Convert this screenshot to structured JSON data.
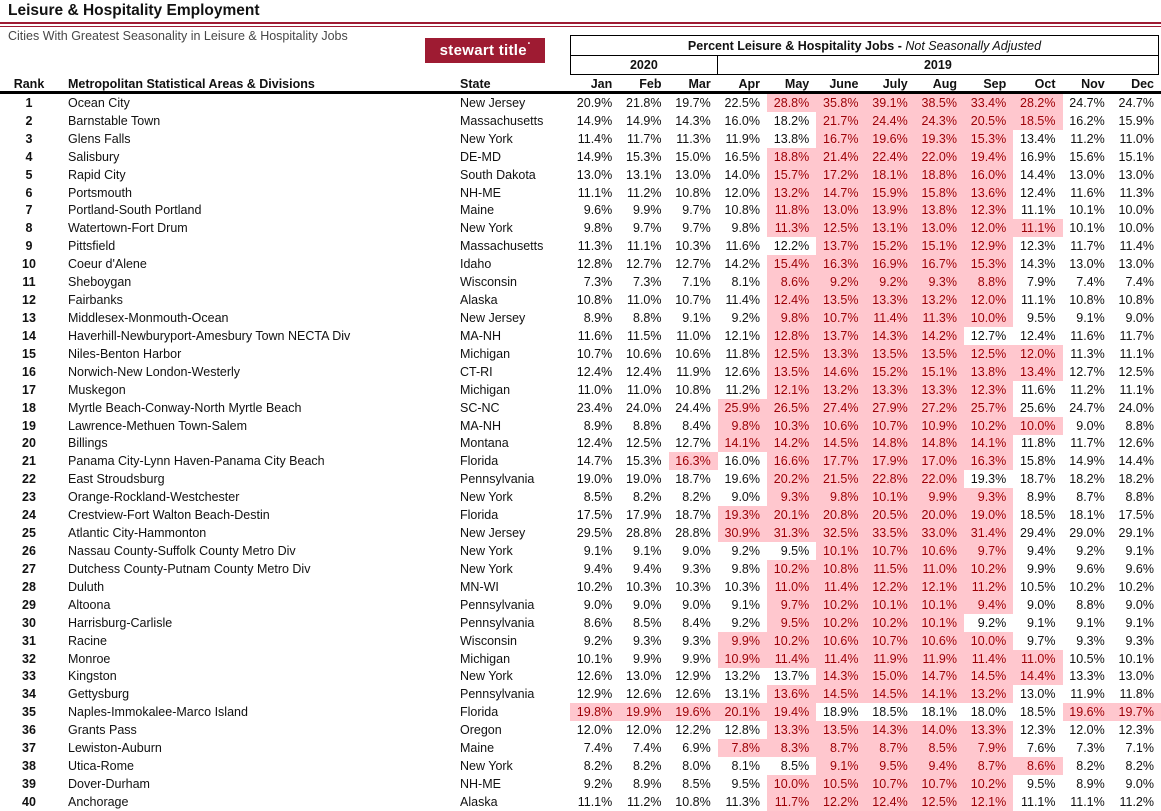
{
  "page": {
    "title": "Leisure & Hospitality Employment",
    "subtitle": "Cities With Greatest Seasonality in Leisure & Hospitality Jobs"
  },
  "logo": {
    "text": "stewart title",
    "mark": "•"
  },
  "colors": {
    "accent": "#9E1B32",
    "highlight_bg": "#FFC7CE",
    "highlight_text": "#9C0006"
  },
  "table": {
    "group_header_bold": "Percent Leisure & Hospitality Jobs - ",
    "group_header_italic": "Not Seasonally Adjusted",
    "year_2020": "2020",
    "year_2019": "2019",
    "columns": {
      "rank": "Rank",
      "msa": "Metropolitan Statistical Areas & Divisions",
      "state": "State",
      "months": [
        "Jan",
        "Feb",
        "Mar",
        "Apr",
        "May",
        "June",
        "July",
        "Aug",
        "Sep",
        "Oct",
        "Nov",
        "Dec"
      ]
    },
    "rows": [
      {
        "rank": "1",
        "msa": "Ocean City",
        "state": "New Jersey",
        "values": [
          "20.9%",
          "21.8%",
          "19.7%",
          "22.5%",
          "28.8%",
          "35.8%",
          "39.1%",
          "38.5%",
          "33.4%",
          "28.2%",
          "24.7%",
          "24.7%"
        ],
        "hl": [
          4,
          5,
          6,
          7,
          8,
          9
        ]
      },
      {
        "rank": "2",
        "msa": "Barnstable Town",
        "state": "Massachusetts",
        "values": [
          "14.9%",
          "14.9%",
          "14.3%",
          "16.0%",
          "18.2%",
          "21.7%",
          "24.4%",
          "24.3%",
          "20.5%",
          "18.5%",
          "16.2%",
          "15.9%"
        ],
        "hl": [
          5,
          6,
          7,
          8,
          9
        ]
      },
      {
        "rank": "3",
        "msa": "Glens Falls",
        "state": "New York",
        "values": [
          "11.4%",
          "11.7%",
          "11.3%",
          "11.9%",
          "13.8%",
          "16.7%",
          "19.6%",
          "19.3%",
          "15.3%",
          "13.4%",
          "11.2%",
          "11.0%"
        ],
        "hl": [
          5,
          6,
          7,
          8
        ]
      },
      {
        "rank": "4",
        "msa": "Salisbury",
        "state": "DE-MD",
        "values": [
          "14.9%",
          "15.3%",
          "15.0%",
          "16.5%",
          "18.8%",
          "21.4%",
          "22.4%",
          "22.0%",
          "19.4%",
          "16.9%",
          "15.6%",
          "15.1%"
        ],
        "hl": [
          4,
          5,
          6,
          7,
          8
        ]
      },
      {
        "rank": "5",
        "msa": "Rapid City",
        "state": "South Dakota",
        "values": [
          "13.0%",
          "13.1%",
          "13.0%",
          "14.0%",
          "15.7%",
          "17.2%",
          "18.1%",
          "18.8%",
          "16.0%",
          "14.4%",
          "13.0%",
          "13.0%"
        ],
        "hl": [
          4,
          5,
          6,
          7,
          8
        ]
      },
      {
        "rank": "6",
        "msa": "Portsmouth",
        "state": "NH-ME",
        "values": [
          "11.1%",
          "11.2%",
          "10.8%",
          "12.0%",
          "13.2%",
          "14.7%",
          "15.9%",
          "15.8%",
          "13.6%",
          "12.4%",
          "11.6%",
          "11.3%"
        ],
        "hl": [
          4,
          5,
          6,
          7,
          8
        ]
      },
      {
        "rank": "7",
        "msa": "Portland-South Portland",
        "state": "Maine",
        "values": [
          "9.6%",
          "9.9%",
          "9.7%",
          "10.8%",
          "11.8%",
          "13.0%",
          "13.9%",
          "13.8%",
          "12.3%",
          "11.1%",
          "10.1%",
          "10.0%"
        ],
        "hl": [
          4,
          5,
          6,
          7,
          8
        ]
      },
      {
        "rank": "8",
        "msa": "Watertown-Fort Drum",
        "state": "New York",
        "values": [
          "9.8%",
          "9.7%",
          "9.7%",
          "9.8%",
          "11.3%",
          "12.5%",
          "13.1%",
          "13.0%",
          "12.0%",
          "11.1%",
          "10.1%",
          "10.0%"
        ],
        "hl": [
          4,
          5,
          6,
          7,
          8,
          9
        ]
      },
      {
        "rank": "9",
        "msa": "Pittsfield",
        "state": "Massachusetts",
        "values": [
          "11.3%",
          "11.1%",
          "10.3%",
          "11.6%",
          "12.2%",
          "13.7%",
          "15.2%",
          "15.1%",
          "12.9%",
          "12.3%",
          "11.7%",
          "11.4%"
        ],
        "hl": [
          5,
          6,
          7,
          8
        ]
      },
      {
        "rank": "10",
        "msa": "Coeur d'Alene",
        "state": "Idaho",
        "values": [
          "12.8%",
          "12.7%",
          "12.7%",
          "14.2%",
          "15.4%",
          "16.3%",
          "16.9%",
          "16.7%",
          "15.3%",
          "14.3%",
          "13.0%",
          "13.0%"
        ],
        "hl": [
          4,
          5,
          6,
          7,
          8
        ]
      },
      {
        "rank": "11",
        "msa": "Sheboygan",
        "state": "Wisconsin",
        "values": [
          "7.3%",
          "7.3%",
          "7.1%",
          "8.1%",
          "8.6%",
          "9.2%",
          "9.2%",
          "9.3%",
          "8.8%",
          "7.9%",
          "7.4%",
          "7.4%"
        ],
        "hl": [
          4,
          5,
          6,
          7,
          8
        ]
      },
      {
        "rank": "12",
        "msa": "Fairbanks",
        "state": "Alaska",
        "values": [
          "10.8%",
          "11.0%",
          "10.7%",
          "11.4%",
          "12.4%",
          "13.5%",
          "13.3%",
          "13.2%",
          "12.0%",
          "11.1%",
          "10.8%",
          "10.8%"
        ],
        "hl": [
          4,
          5,
          6,
          7,
          8
        ]
      },
      {
        "rank": "13",
        "msa": "Middlesex-Monmouth-Ocean",
        "state": "New Jersey",
        "values": [
          "8.9%",
          "8.8%",
          "9.1%",
          "9.2%",
          "9.8%",
          "10.7%",
          "11.4%",
          "11.3%",
          "10.0%",
          "9.5%",
          "9.1%",
          "9.0%"
        ],
        "hl": [
          4,
          5,
          6,
          7,
          8
        ]
      },
      {
        "rank": "14",
        "msa": "Haverhill-Newburyport-Amesbury Town NECTA Div",
        "state": "MA-NH",
        "values": [
          "11.6%",
          "11.5%",
          "11.0%",
          "12.1%",
          "12.8%",
          "13.7%",
          "14.3%",
          "14.2%",
          "12.7%",
          "12.4%",
          "11.6%",
          "11.7%"
        ],
        "hl": [
          4,
          5,
          6,
          7
        ]
      },
      {
        "rank": "15",
        "msa": "Niles-Benton Harbor",
        "state": "Michigan",
        "values": [
          "10.7%",
          "10.6%",
          "10.6%",
          "11.8%",
          "12.5%",
          "13.3%",
          "13.5%",
          "13.5%",
          "12.5%",
          "12.0%",
          "11.3%",
          "11.1%"
        ],
        "hl": [
          4,
          5,
          6,
          7,
          8,
          9
        ]
      },
      {
        "rank": "16",
        "msa": "Norwich-New London-Westerly",
        "state": "CT-RI",
        "values": [
          "12.4%",
          "12.4%",
          "11.9%",
          "12.6%",
          "13.5%",
          "14.6%",
          "15.2%",
          "15.1%",
          "13.8%",
          "13.4%",
          "12.7%",
          "12.5%"
        ],
        "hl": [
          4,
          5,
          6,
          7,
          8,
          9
        ]
      },
      {
        "rank": "17",
        "msa": "Muskegon",
        "state": "Michigan",
        "values": [
          "11.0%",
          "11.0%",
          "10.8%",
          "11.2%",
          "12.1%",
          "13.2%",
          "13.3%",
          "13.3%",
          "12.3%",
          "11.6%",
          "11.2%",
          "11.1%"
        ],
        "hl": [
          4,
          5,
          6,
          7,
          8
        ]
      },
      {
        "rank": "18",
        "msa": "Myrtle Beach-Conway-North Myrtle Beach",
        "state": "SC-NC",
        "values": [
          "23.4%",
          "24.0%",
          "24.4%",
          "25.9%",
          "26.5%",
          "27.4%",
          "27.9%",
          "27.2%",
          "25.7%",
          "25.6%",
          "24.7%",
          "24.0%"
        ],
        "hl": [
          3,
          4,
          5,
          6,
          7,
          8
        ]
      },
      {
        "rank": "19",
        "msa": "Lawrence-Methuen Town-Salem",
        "state": "MA-NH",
        "values": [
          "8.9%",
          "8.8%",
          "8.4%",
          "9.8%",
          "10.3%",
          "10.6%",
          "10.7%",
          "10.9%",
          "10.2%",
          "10.0%",
          "9.0%",
          "8.8%"
        ],
        "hl": [
          3,
          4,
          5,
          6,
          7,
          8,
          9
        ]
      },
      {
        "rank": "20",
        "msa": "Billings",
        "state": "Montana",
        "values": [
          "12.4%",
          "12.5%",
          "12.7%",
          "14.1%",
          "14.2%",
          "14.5%",
          "14.8%",
          "14.8%",
          "14.1%",
          "11.8%",
          "11.7%",
          "12.6%"
        ],
        "hl": [
          3,
          4,
          5,
          6,
          7,
          8
        ]
      },
      {
        "rank": "21",
        "msa": "Panama City-Lynn Haven-Panama City Beach",
        "state": "Florida",
        "values": [
          "14.7%",
          "15.3%",
          "16.3%",
          "16.0%",
          "16.6%",
          "17.7%",
          "17.9%",
          "17.0%",
          "16.3%",
          "15.8%",
          "14.9%",
          "14.4%"
        ],
        "hl": [
          2,
          4,
          5,
          6,
          7,
          8
        ]
      },
      {
        "rank": "22",
        "msa": "East Stroudsburg",
        "state": "Pennsylvania",
        "values": [
          "19.0%",
          "19.0%",
          "18.7%",
          "19.6%",
          "20.2%",
          "21.5%",
          "22.8%",
          "22.0%",
          "19.3%",
          "18.7%",
          "18.2%",
          "18.2%"
        ],
        "hl": [
          4,
          5,
          6,
          7
        ]
      },
      {
        "rank": "23",
        "msa": "Orange-Rockland-Westchester",
        "state": "New York",
        "values": [
          "8.5%",
          "8.2%",
          "8.2%",
          "9.0%",
          "9.3%",
          "9.8%",
          "10.1%",
          "9.9%",
          "9.3%",
          "8.9%",
          "8.7%",
          "8.8%"
        ],
        "hl": [
          4,
          5,
          6,
          7,
          8
        ]
      },
      {
        "rank": "24",
        "msa": "Crestview-Fort Walton Beach-Destin",
        "state": "Florida",
        "values": [
          "17.5%",
          "17.9%",
          "18.7%",
          "19.3%",
          "20.1%",
          "20.8%",
          "20.5%",
          "20.0%",
          "19.0%",
          "18.5%",
          "18.1%",
          "17.5%"
        ],
        "hl": [
          3,
          4,
          5,
          6,
          7,
          8
        ]
      },
      {
        "rank": "25",
        "msa": "Atlantic City-Hammonton",
        "state": "New Jersey",
        "values": [
          "29.5%",
          "28.8%",
          "28.8%",
          "30.9%",
          "31.3%",
          "32.5%",
          "33.5%",
          "33.0%",
          "31.4%",
          "29.4%",
          "29.0%",
          "29.1%"
        ],
        "hl": [
          3,
          4,
          5,
          6,
          7,
          8
        ]
      },
      {
        "rank": "26",
        "msa": "Nassau County-Suffolk County Metro Div",
        "state": "New York",
        "values": [
          "9.1%",
          "9.1%",
          "9.0%",
          "9.2%",
          "9.5%",
          "10.1%",
          "10.7%",
          "10.6%",
          "9.7%",
          "9.4%",
          "9.2%",
          "9.1%"
        ],
        "hl": [
          5,
          6,
          7,
          8
        ]
      },
      {
        "rank": "27",
        "msa": "Dutchess County-Putnam County Metro Div",
        "state": "New York",
        "values": [
          "9.4%",
          "9.4%",
          "9.3%",
          "9.8%",
          "10.2%",
          "10.8%",
          "11.5%",
          "11.0%",
          "10.2%",
          "9.9%",
          "9.6%",
          "9.6%"
        ],
        "hl": [
          4,
          5,
          6,
          7,
          8
        ]
      },
      {
        "rank": "28",
        "msa": "Duluth",
        "state": "MN-WI",
        "values": [
          "10.2%",
          "10.3%",
          "10.3%",
          "10.3%",
          "11.0%",
          "11.4%",
          "12.2%",
          "12.1%",
          "11.2%",
          "10.5%",
          "10.2%",
          "10.2%"
        ],
        "hl": [
          4,
          5,
          6,
          7,
          8
        ]
      },
      {
        "rank": "29",
        "msa": "Altoona",
        "state": "Pennsylvania",
        "values": [
          "9.0%",
          "9.0%",
          "9.0%",
          "9.1%",
          "9.7%",
          "10.2%",
          "10.1%",
          "10.1%",
          "9.4%",
          "9.0%",
          "8.8%",
          "9.0%"
        ],
        "hl": [
          4,
          5,
          6,
          7,
          8
        ]
      },
      {
        "rank": "30",
        "msa": "Harrisburg-Carlisle",
        "state": "Pennsylvania",
        "values": [
          "8.6%",
          "8.5%",
          "8.4%",
          "9.2%",
          "9.5%",
          "10.2%",
          "10.2%",
          "10.1%",
          "9.2%",
          "9.1%",
          "9.1%",
          "9.1%"
        ],
        "hl": [
          4,
          5,
          6,
          7
        ]
      },
      {
        "rank": "31",
        "msa": "Racine",
        "state": "Wisconsin",
        "values": [
          "9.2%",
          "9.3%",
          "9.3%",
          "9.9%",
          "10.2%",
          "10.6%",
          "10.7%",
          "10.6%",
          "10.0%",
          "9.7%",
          "9.3%",
          "9.3%"
        ],
        "hl": [
          3,
          4,
          5,
          6,
          7,
          8
        ]
      },
      {
        "rank": "32",
        "msa": "Monroe",
        "state": "Michigan",
        "values": [
          "10.1%",
          "9.9%",
          "9.9%",
          "10.9%",
          "11.4%",
          "11.4%",
          "11.9%",
          "11.9%",
          "11.4%",
          "11.0%",
          "10.5%",
          "10.1%"
        ],
        "hl": [
          3,
          4,
          5,
          6,
          7,
          8,
          9
        ]
      },
      {
        "rank": "33",
        "msa": "Kingston",
        "state": "New York",
        "values": [
          "12.6%",
          "13.0%",
          "12.9%",
          "13.2%",
          "13.7%",
          "14.3%",
          "15.0%",
          "14.7%",
          "14.5%",
          "14.4%",
          "13.3%",
          "13.0%"
        ],
        "hl": [
          5,
          6,
          7,
          8,
          9
        ]
      },
      {
        "rank": "34",
        "msa": "Gettysburg",
        "state": "Pennsylvania",
        "values": [
          "12.9%",
          "12.6%",
          "12.6%",
          "13.1%",
          "13.6%",
          "14.5%",
          "14.5%",
          "14.1%",
          "13.2%",
          "13.0%",
          "11.9%",
          "11.8%"
        ],
        "hl": [
          4,
          5,
          6,
          7,
          8
        ]
      },
      {
        "rank": "35",
        "msa": "Naples-Immokalee-Marco Island",
        "state": "Florida",
        "values": [
          "19.8%",
          "19.9%",
          "19.6%",
          "20.1%",
          "19.4%",
          "18.9%",
          "18.5%",
          "18.1%",
          "18.0%",
          "18.5%",
          "19.6%",
          "19.7%"
        ],
        "hl": [
          0,
          1,
          2,
          3,
          4,
          10,
          11
        ]
      },
      {
        "rank": "36",
        "msa": "Grants Pass",
        "state": "Oregon",
        "values": [
          "12.0%",
          "12.0%",
          "12.2%",
          "12.8%",
          "13.3%",
          "13.5%",
          "14.3%",
          "14.0%",
          "13.3%",
          "12.3%",
          "12.0%",
          "12.3%"
        ],
        "hl": [
          4,
          5,
          6,
          7,
          8
        ]
      },
      {
        "rank": "37",
        "msa": "Lewiston-Auburn",
        "state": "Maine",
        "values": [
          "7.4%",
          "7.4%",
          "6.9%",
          "7.8%",
          "8.3%",
          "8.7%",
          "8.7%",
          "8.5%",
          "7.9%",
          "7.6%",
          "7.3%",
          "7.1%"
        ],
        "hl": [
          3,
          4,
          5,
          6,
          7,
          8
        ]
      },
      {
        "rank": "38",
        "msa": "Utica-Rome",
        "state": "New York",
        "values": [
          "8.2%",
          "8.2%",
          "8.0%",
          "8.1%",
          "8.5%",
          "9.1%",
          "9.5%",
          "9.4%",
          "8.7%",
          "8.6%",
          "8.2%",
          "8.2%"
        ],
        "hl": [
          5,
          6,
          7,
          8,
          9
        ]
      },
      {
        "rank": "39",
        "msa": "Dover-Durham",
        "state": "NH-ME",
        "values": [
          "9.2%",
          "8.9%",
          "8.5%",
          "9.5%",
          "10.0%",
          "10.5%",
          "10.7%",
          "10.7%",
          "10.2%",
          "9.5%",
          "8.9%",
          "9.0%"
        ],
        "hl": [
          4,
          5,
          6,
          7,
          8
        ]
      },
      {
        "rank": "40",
        "msa": "Anchorage",
        "state": "Alaska",
        "values": [
          "11.1%",
          "11.2%",
          "10.8%",
          "11.3%",
          "11.7%",
          "12.2%",
          "12.4%",
          "12.5%",
          "12.1%",
          "11.1%",
          "11.1%",
          "11.2%"
        ],
        "hl": [
          4,
          5,
          6,
          7,
          8
        ]
      }
    ]
  }
}
